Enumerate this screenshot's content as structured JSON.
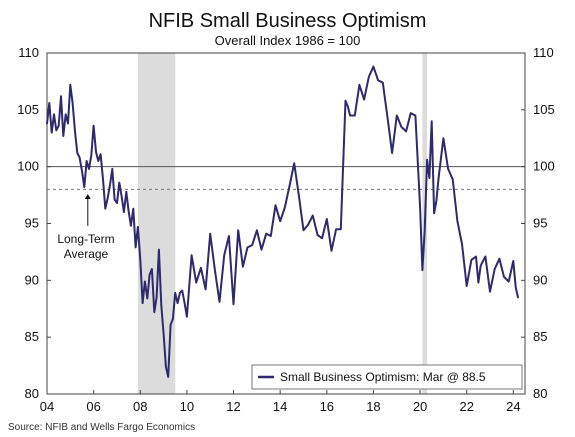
{
  "chart_data": {
    "type": "line",
    "title": "NFIB Small Business Optimism",
    "subtitle": "Overall Index 1986 = 100",
    "source": "Source: NFIB and Wells Fargo Economics",
    "x_range": [
      2004.0,
      2024.5
    ],
    "x_tick_values": [
      2004,
      2006,
      2008,
      2010,
      2012,
      2014,
      2016,
      2018,
      2020,
      2022,
      2024
    ],
    "x_tick_labels": [
      "04",
      "06",
      "08",
      "10",
      "12",
      "14",
      "16",
      "18",
      "20",
      "22",
      "24"
    ],
    "ylim": [
      80,
      110
    ],
    "y_ticks": [
      80,
      85,
      90,
      95,
      100,
      105,
      110
    ],
    "reference_lines": [
      {
        "value": 100,
        "style": "solid"
      },
      {
        "value": 98,
        "style": "dashed"
      }
    ],
    "recessions": [
      {
        "start": 2007.9,
        "end": 2009.5
      },
      {
        "start": 2020.1,
        "end": 2020.3
      }
    ],
    "annotation": {
      "lines": [
        "Long-Term",
        "Average"
      ],
      "arrow_x": 2005.75,
      "arrow_from_y": 94.8,
      "arrow_to_y": 97.6
    },
    "legend": {
      "position": "bottom-right",
      "label": "Small Business Optimism: Mar @ 88.5"
    },
    "series": [
      {
        "name": "Small Business Optimism",
        "color": "#2e2a6b",
        "x": [
          2004.0,
          2004.1,
          2004.2,
          2004.3,
          2004.4,
          2004.5,
          2004.6,
          2004.7,
          2004.8,
          2004.9,
          2005.0,
          2005.1,
          2005.2,
          2005.3,
          2005.4,
          2005.5,
          2005.6,
          2005.7,
          2005.8,
          2005.9,
          2006.0,
          2006.1,
          2006.2,
          2006.3,
          2006.4,
          2006.5,
          2006.6,
          2006.7,
          2006.8,
          2006.9,
          2007.0,
          2007.1,
          2007.2,
          2007.3,
          2007.4,
          2007.5,
          2007.6,
          2007.7,
          2007.8,
          2007.9,
          2008.0,
          2008.1,
          2008.2,
          2008.3,
          2008.4,
          2008.5,
          2008.6,
          2008.7,
          2008.8,
          2008.9,
          2009.0,
          2009.1,
          2009.2,
          2009.3,
          2009.4,
          2009.5,
          2009.6,
          2009.7,
          2009.8,
          2009.9,
          2010.0,
          2010.2,
          2010.4,
          2010.6,
          2010.8,
          2011.0,
          2011.2,
          2011.4,
          2011.6,
          2011.8,
          2012.0,
          2012.2,
          2012.4,
          2012.6,
          2012.8,
          2013.0,
          2013.2,
          2013.4,
          2013.6,
          2013.8,
          2014.0,
          2014.2,
          2014.4,
          2014.6,
          2014.8,
          2015.0,
          2015.2,
          2015.4,
          2015.6,
          2015.8,
          2016.0,
          2016.2,
          2016.4,
          2016.6,
          2016.8,
          2016.9,
          2017.0,
          2017.2,
          2017.4,
          2017.6,
          2017.8,
          2018.0,
          2018.2,
          2018.4,
          2018.6,
          2018.8,
          2019.0,
          2019.2,
          2019.4,
          2019.6,
          2019.8,
          2020.0,
          2020.1,
          2020.2,
          2020.3,
          2020.4,
          2020.5,
          2020.6,
          2020.7,
          2020.8,
          2021.0,
          2021.2,
          2021.4,
          2021.6,
          2021.8,
          2022.0,
          2022.2,
          2022.4,
          2022.5,
          2022.6,
          2022.8,
          2023.0,
          2023.2,
          2023.4,
          2023.6,
          2023.8,
          2024.0,
          2024.1,
          2024.2
        ],
        "values": [
          103.8,
          105.6,
          103.0,
          104.6,
          103.2,
          103.6,
          106.2,
          102.7,
          104.6,
          103.8,
          107.2,
          105.6,
          103.1,
          101.2,
          100.8,
          99.6,
          98.2,
          100.5,
          99.8,
          101.0,
          103.6,
          101.3,
          100.5,
          101.1,
          98.9,
          96.3,
          97.2,
          98.4,
          99.8,
          97.1,
          96.8,
          98.6,
          97.4,
          96.0,
          97.8,
          96.1,
          94.8,
          96.3,
          92.9,
          94.7,
          91.8,
          88.0,
          89.9,
          88.4,
          90.5,
          91.0,
          87.2,
          88.5,
          92.7,
          87.8,
          85.3,
          82.4,
          81.5,
          86.1,
          86.6,
          88.9,
          88.0,
          88.9,
          89.1,
          88.0,
          86.8,
          92.2,
          89.8,
          91.1,
          89.2,
          94.1,
          90.9,
          88.1,
          92.2,
          93.9,
          87.9,
          94.4,
          91.2,
          92.9,
          93.1,
          94.4,
          92.7,
          94.1,
          93.9,
          96.6,
          95.2,
          96.4,
          98.3,
          100.3,
          97.5,
          94.4,
          94.9,
          95.7,
          94.0,
          93.7,
          95.4,
          92.6,
          94.5,
          94.5,
          105.8,
          105.3,
          104.5,
          104.5,
          107.2,
          105.9,
          107.9,
          108.8,
          107.6,
          107.4,
          104.4,
          101.2,
          104.5,
          103.5,
          103.1,
          104.7,
          104.5,
          96.4,
          90.9,
          94.4,
          100.6,
          99.0,
          104.0,
          95.9,
          97.0,
          99.1,
          102.5,
          99.8,
          98.9,
          95.2,
          93.2,
          89.5,
          91.8,
          92.1,
          89.8,
          91.3,
          92.1,
          89.0,
          91.0,
          91.9,
          90.3,
          89.9,
          91.7,
          89.4,
          88.5
        ]
      }
    ]
  }
}
